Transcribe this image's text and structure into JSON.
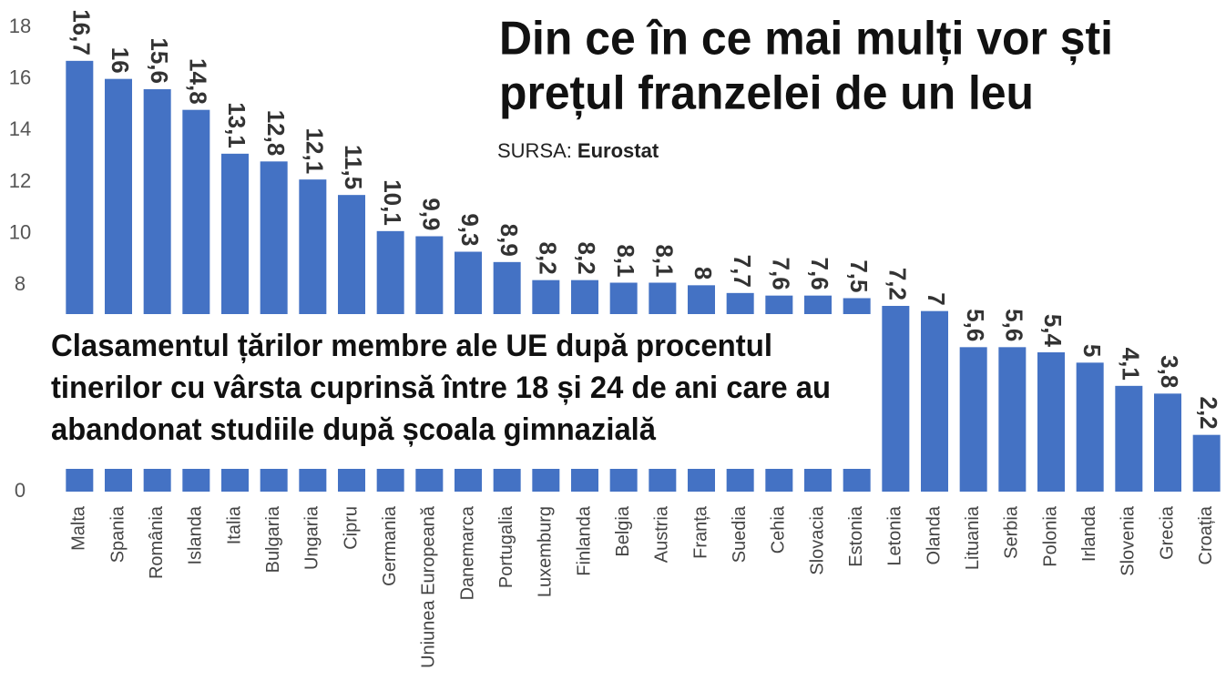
{
  "chart_data": {
    "type": "bar",
    "title": [
      "Din ce în ce mai mulți vor ști",
      "prețul franzelei de un leu"
    ],
    "source_label": "SURSA:",
    "source": "Eurostat",
    "subtitle": [
      "Clasamentul țărilor membre ale UE după procentul",
      "tinerilor cu vârsta cuprinsă între 18 și 24 de ani care au",
      "abandonat studiile după școala gimnazială"
    ],
    "categories": [
      "Malta",
      "Spania",
      "România",
      "Islanda",
      "Italia",
      "Bulgaria",
      "Ungaria",
      "Cipru",
      "Germania",
      "Uniunea Europeană",
      "Danemarca",
      "Portugalia",
      "Luxemburg",
      "Finlanda",
      "Belgia",
      "Austria",
      "Franța",
      "Suedia",
      "Cehia",
      "Slovacia",
      "Estonia",
      "Letonia",
      "Olanda",
      "Lituania",
      "Serbia",
      "Polonia",
      "Irlanda",
      "Slovenia",
      "Grecia",
      "Croația"
    ],
    "values": [
      16.7,
      16,
      15.6,
      14.8,
      13.1,
      12.8,
      12.1,
      11.5,
      10.1,
      9.9,
      9.3,
      8.9,
      8.2,
      8.2,
      8.1,
      8.1,
      8,
      7.7,
      7.6,
      7.6,
      7.5,
      7.2,
      7,
      5.6,
      5.6,
      5.4,
      5,
      4.1,
      3.8,
      2.2
    ],
    "value_labels": [
      "16,7",
      "16",
      "15,6",
      "14,8",
      "13,1",
      "12,8",
      "12,1",
      "11,5",
      "10,1",
      "9,9",
      "9,3",
      "8,9",
      "8,2",
      "8,2",
      "8,1",
      "8,1",
      "8",
      "7,7",
      "7,6",
      "7,6",
      "7,5",
      "7,2",
      "7",
      "5,6",
      "5,6",
      "5,4",
      "5",
      "4,1",
      "3,8",
      "2,2"
    ],
    "color": "#4472c4",
    "ylim": [
      0,
      18
    ],
    "yticks": [
      0,
      2,
      4,
      6,
      8,
      10,
      12,
      14,
      16,
      18
    ],
    "grid": false
  }
}
